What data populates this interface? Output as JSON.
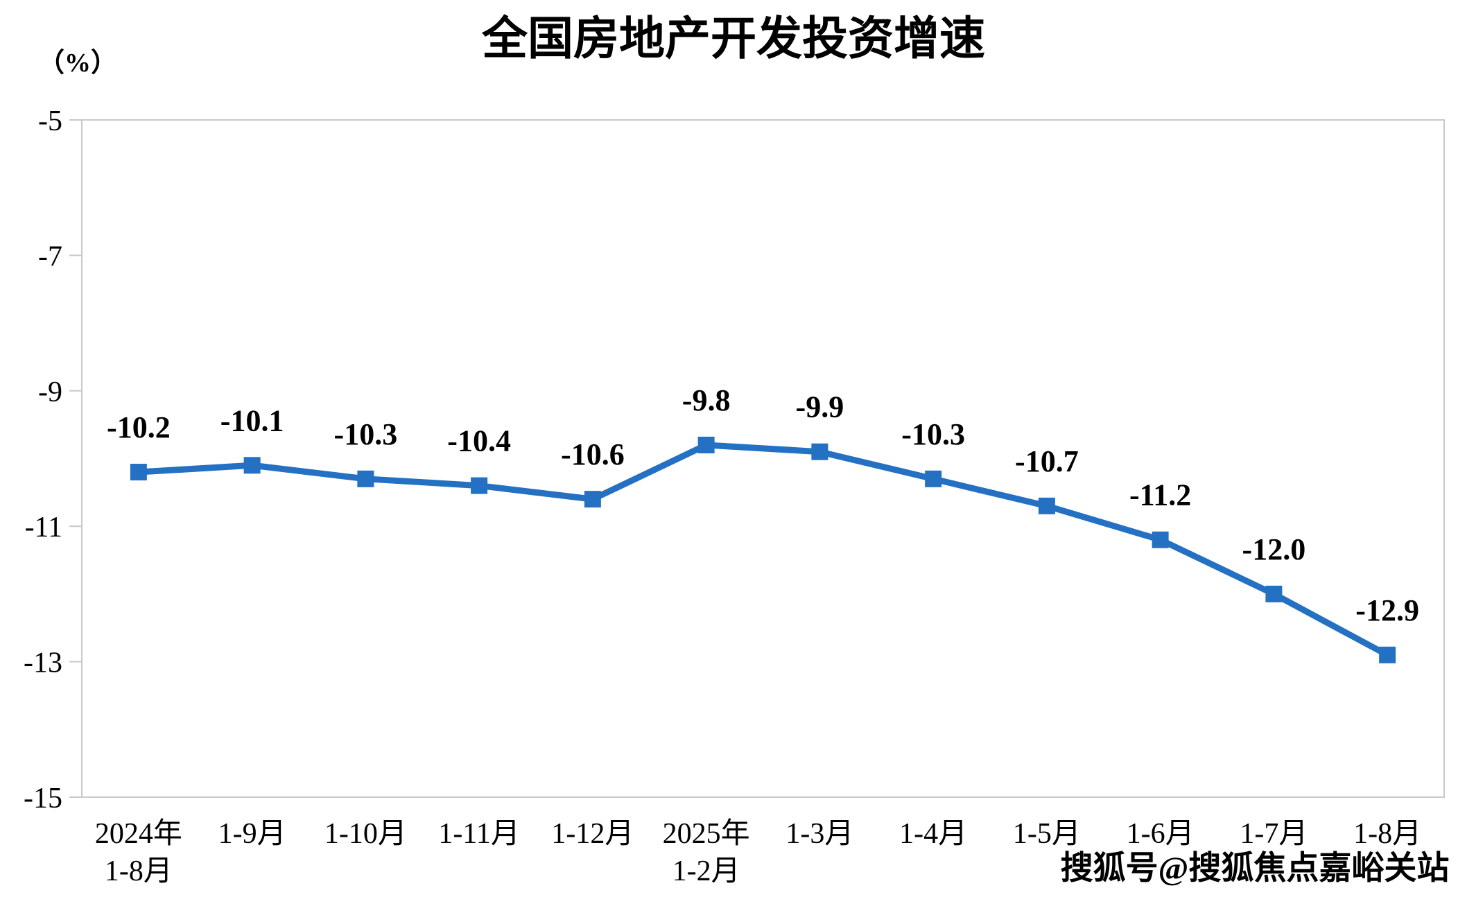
{
  "watermark": {
    "text": "搜狐号@搜狐焦点嘉峪关站"
  },
  "colors": {
    "line": "#2470C2",
    "marker": "#2470C2",
    "plot_border": "#C9C9C9",
    "text": "#000000"
  },
  "chart_data": {
    "type": "line",
    "title": "全国房地产开发投资增速",
    "unit_label": "（%）",
    "categories": [
      [
        "2024年",
        "1-8月"
      ],
      [
        "1-9月"
      ],
      [
        "1-10月"
      ],
      [
        "1-11月"
      ],
      [
        "1-12月"
      ],
      [
        "2025年",
        "1-2月"
      ],
      [
        "1-3月"
      ],
      [
        "1-4月"
      ],
      [
        "1-5月"
      ],
      [
        "1-6月"
      ],
      [
        "1-7月"
      ],
      [
        "1-8月"
      ]
    ],
    "series": [
      {
        "name": "全国房地产开发投资增速",
        "values": [
          -10.2,
          -10.1,
          -10.3,
          -10.4,
          -10.6,
          -9.8,
          -9.9,
          -10.3,
          -10.7,
          -11.2,
          -12.0,
          -12.9
        ]
      }
    ],
    "data_labels": [
      "-10.2",
      "-10.1",
      "-10.3",
      "-10.4",
      "-10.6",
      "-9.8",
      "-9.9",
      "-10.3",
      "-10.7",
      "-11.2",
      "-12.0",
      "-12.9"
    ],
    "ylim": [
      -15,
      -5
    ],
    "yticks": [
      -5,
      -7,
      -9,
      -11,
      -13,
      -15
    ],
    "xlabel": "",
    "ylabel": "（%）",
    "grid": false,
    "legend": "none",
    "marker_shape": "square"
  }
}
